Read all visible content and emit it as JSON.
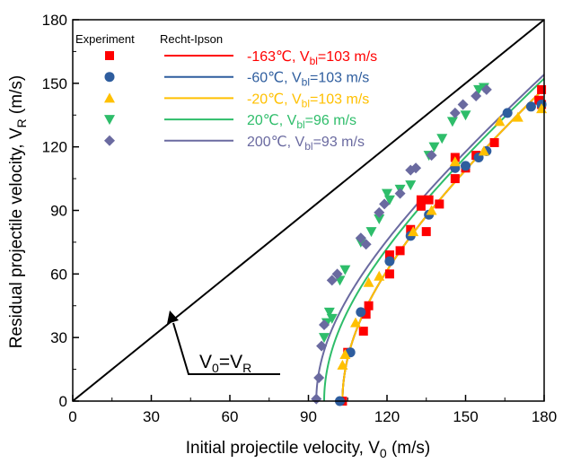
{
  "chart_data": {
    "type": "scatter",
    "xlabel": "Initial projectile velocity, V",
    "xlabel_sub": "0",
    "xlabel_unit": " (m/s)",
    "ylabel": "Residual projectile velocity, V",
    "ylabel_sub": "R",
    "ylabel_unit": " (m/s)",
    "xlim": [
      0,
      180
    ],
    "ylim": [
      0,
      180
    ],
    "xticks": [
      0,
      30,
      60,
      90,
      120,
      150,
      180
    ],
    "yticks": [
      0,
      30,
      60,
      90,
      120,
      150,
      180
    ],
    "grid": false,
    "legend_position": "top-left",
    "legend_headers": {
      "experiment": "Experiment",
      "model": "Recht-Ipson"
    },
    "reference_line": {
      "x": [
        0,
        180
      ],
      "y": [
        0,
        180
      ]
    },
    "annotation": {
      "main": "V",
      "sub1": "0",
      "eq": "=V",
      "sub2": "R",
      "point": [
        38,
        38
      ]
    },
    "series": [
      {
        "name_temp": "-163℃, V",
        "name_sub": "bl",
        "name_rest": "=103 m/s",
        "color": "#ff0000",
        "marker": "square",
        "vbl": 103,
        "points": [
          [
            103,
            0
          ],
          [
            105,
            23
          ],
          [
            111,
            33
          ],
          [
            112,
            41
          ],
          [
            113,
            45
          ],
          [
            121,
            60
          ],
          [
            121,
            69
          ],
          [
            125,
            71
          ],
          [
            129,
            81
          ],
          [
            133,
            92
          ],
          [
            133,
            95
          ],
          [
            135,
            80
          ],
          [
            136,
            95
          ],
          [
            140,
            93
          ],
          [
            146,
            115
          ],
          [
            146,
            105
          ],
          [
            150,
            110
          ],
          [
            154,
            116
          ],
          [
            161,
            122
          ],
          [
            179,
            147
          ],
          [
            179,
            140
          ],
          [
            178,
            142
          ]
        ]
      },
      {
        "name_temp": "-60℃, V",
        "name_sub": "bl",
        "name_rest": "=103 m/s",
        "color": "#2e5d9e",
        "marker": "circle",
        "vbl": 103,
        "points": [
          [
            102,
            0
          ],
          [
            106,
            23
          ],
          [
            110,
            42
          ],
          [
            121,
            66
          ],
          [
            129,
            78
          ],
          [
            136,
            88
          ],
          [
            146,
            110
          ],
          [
            150,
            111
          ],
          [
            155,
            115
          ],
          [
            158,
            118
          ],
          [
            166,
            136
          ],
          [
            175,
            139
          ],
          [
            179,
            140
          ]
        ]
      },
      {
        "name_temp": "-20℃, V",
        "name_sub": "bl",
        "name_rest": "=103 m/s",
        "color": "#ffc000",
        "marker": "triangle-up",
        "vbl": 103,
        "points": [
          [
            103,
            17
          ],
          [
            104,
            22
          ],
          [
            108,
            37
          ],
          [
            113,
            56
          ],
          [
            117,
            59
          ],
          [
            130,
            80
          ],
          [
            137,
            90
          ],
          [
            146,
            113
          ],
          [
            157,
            118
          ],
          [
            163,
            132
          ],
          [
            170,
            134
          ],
          [
            179,
            138
          ]
        ]
      },
      {
        "name_temp": "20℃, V",
        "name_sub": "bl",
        "name_rest": "=96 m/s",
        "color": "#2ebd6a",
        "marker": "triangle-down",
        "vbl": 96,
        "points": [
          [
            96,
            30
          ],
          [
            97,
            37
          ],
          [
            98,
            42
          ],
          [
            99,
            39
          ],
          [
            102,
            57
          ],
          [
            104,
            62
          ],
          [
            110,
            75
          ],
          [
            114,
            80
          ],
          [
            117,
            86
          ],
          [
            120,
            98
          ],
          [
            121,
            95
          ],
          [
            125,
            100
          ],
          [
            129,
            102
          ],
          [
            136,
            116
          ],
          [
            138,
            120
          ],
          [
            141,
            124
          ],
          [
            145,
            132
          ],
          [
            150,
            135
          ],
          [
            155,
            147
          ],
          [
            157,
            148
          ]
        ]
      },
      {
        "name_temp": "200℃, V",
        "name_sub": "bl",
        "name_rest": "=93 m/s",
        "color": "#6a6aa0",
        "marker": "diamond",
        "vbl": 93,
        "points": [
          [
            93,
            1
          ],
          [
            94,
            11
          ],
          [
            95,
            26
          ],
          [
            96,
            36
          ],
          [
            99,
            57
          ],
          [
            101,
            60
          ],
          [
            110,
            77
          ],
          [
            112,
            74
          ],
          [
            117,
            89
          ],
          [
            119,
            93
          ],
          [
            125,
            98
          ],
          [
            129,
            109
          ],
          [
            131,
            110
          ],
          [
            137,
            116
          ],
          [
            146,
            136
          ],
          [
            149,
            140
          ],
          [
            154,
            144
          ],
          [
            158,
            147
          ]
        ]
      }
    ]
  }
}
